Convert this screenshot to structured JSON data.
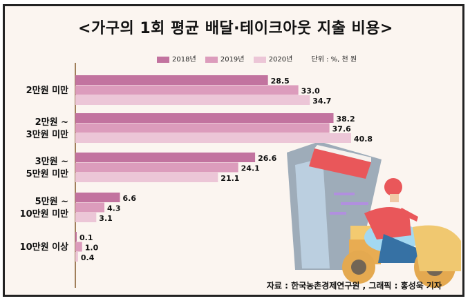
{
  "chart_data": {
    "type": "bar",
    "orientation": "horizontal",
    "title": "<가구의 1회 평균 배달·테이크아웃 지출 비용>",
    "unit": "단위 : %, 천 원",
    "categories": [
      [
        "2만원 미만"
      ],
      [
        "2만원 ~",
        "3만원 미만"
      ],
      [
        "3만원 ~",
        "5만원 미만"
      ],
      [
        "5만원 ~",
        "10만원 미만"
      ],
      [
        "10만원 이상"
      ]
    ],
    "series": [
      {
        "name": "2018년",
        "color": "#c2739f",
        "values": [
          28.5,
          38.2,
          26.6,
          6.6,
          0.1
        ]
      },
      {
        "name": "2019년",
        "color": "#dc9cbc",
        "values": [
          33.0,
          37.6,
          24.1,
          4.3,
          1.0
        ]
      },
      {
        "name": "2020년",
        "color": "#ecc6d7",
        "values": [
          34.7,
          40.8,
          21.1,
          3.1,
          0.4
        ]
      }
    ],
    "legend_order": [
      "2020년",
      "2019년",
      "2018년"
    ],
    "legend_colors": [
      "#ecc6d7",
      "#dc9cbc",
      "#c2739f"
    ],
    "xlim": [
      0,
      45
    ],
    "grid": false,
    "legend_position": "top"
  },
  "source": "자료 : 한국농촌경제연구원 , 그래픽 : 홍성욱 기자"
}
